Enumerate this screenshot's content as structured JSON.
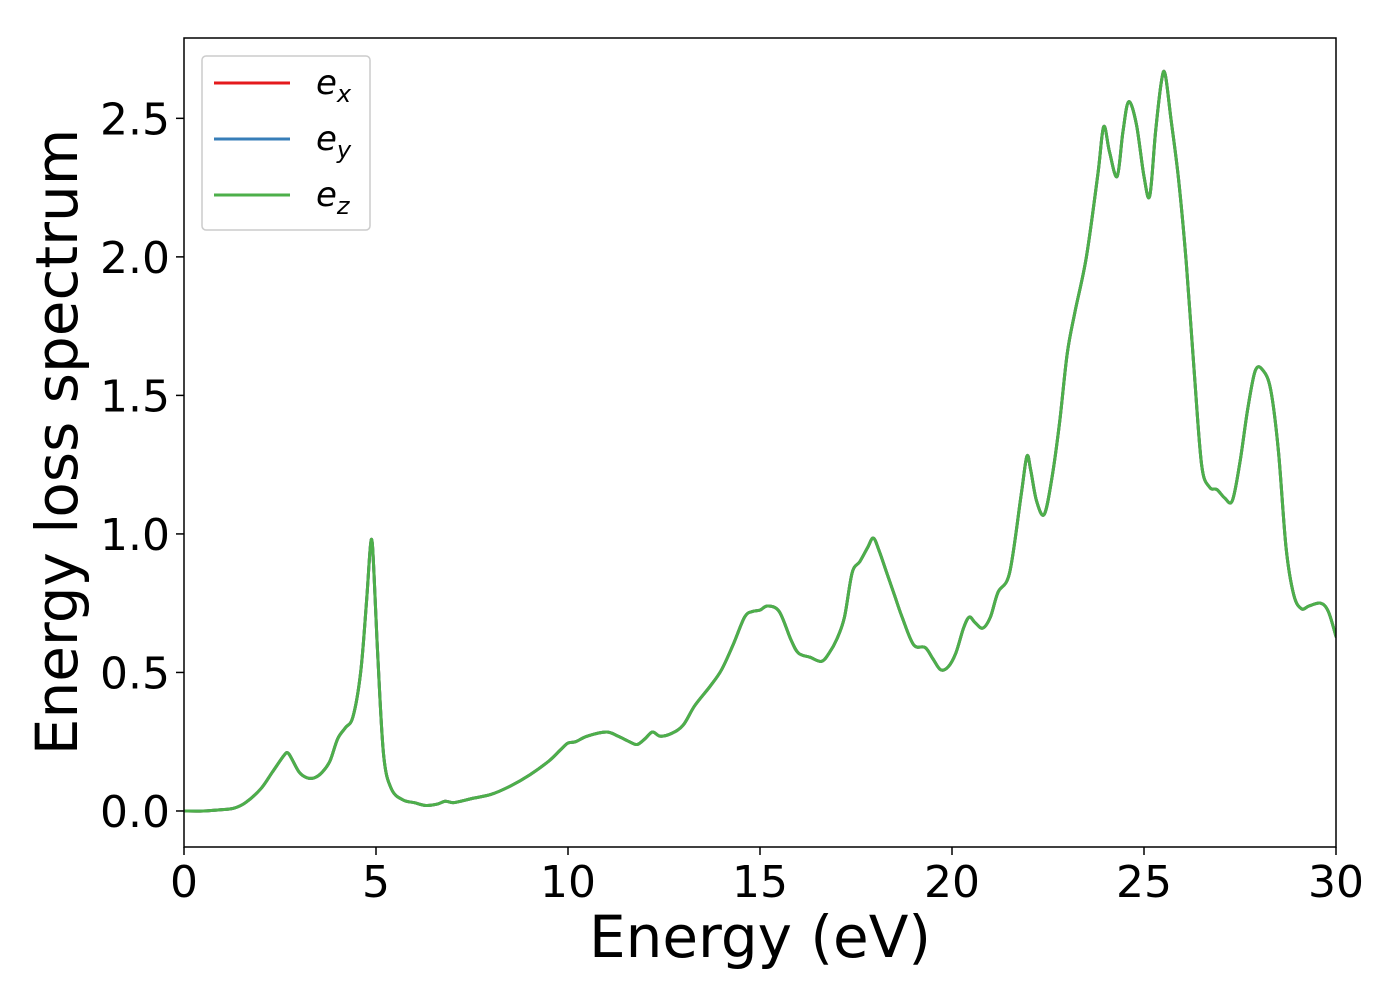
{
  "chart_data": {
    "type": "line",
    "xlabel": "Energy (eV)",
    "ylabel": "Energy loss spectrum",
    "xlim": [
      0,
      30
    ],
    "ylim": [
      -0.13,
      2.79
    ],
    "xticks": [
      0,
      5,
      10,
      15,
      20,
      25,
      30
    ],
    "xtick_labels": [
      "0",
      "5",
      "10",
      "15",
      "20",
      "25",
      "30"
    ],
    "yticks": [
      0.0,
      0.5,
      1.0,
      1.5,
      2.0,
      2.5
    ],
    "ytick_labels": [
      "0.0",
      "0.5",
      "1.0",
      "1.5",
      "2.0",
      "2.5"
    ],
    "grid": false,
    "legend_position": "top-left",
    "series": [
      {
        "name": "e",
        "subscript": "x",
        "color": "#e41a1c"
      },
      {
        "name": "e",
        "subscript": "y",
        "color": "#377eb8"
      },
      {
        "name": "e",
        "subscript": "z",
        "color": "#4daf4a"
      }
    ],
    "shared_values": {
      "x": [
        0,
        0.5,
        1.0,
        1.3,
        1.6,
        2.0,
        2.3,
        2.6,
        2.7,
        2.8,
        3.0,
        3.2,
        3.4,
        3.6,
        3.8,
        4.0,
        4.2,
        4.4,
        4.6,
        4.75,
        4.85,
        4.9,
        4.95,
        5.05,
        5.2,
        5.4,
        5.7,
        6.0,
        6.3,
        6.6,
        6.8,
        7.0,
        7.2,
        7.5,
        8.0,
        8.5,
        9.0,
        9.5,
        9.8,
        10.0,
        10.2,
        10.5,
        11.0,
        11.3,
        11.6,
        11.8,
        12.0,
        12.2,
        12.4,
        12.7,
        13.0,
        13.3,
        13.7,
        14.0,
        14.3,
        14.6,
        14.8,
        15.0,
        15.2,
        15.5,
        15.8,
        16.0,
        16.3,
        16.6,
        16.8,
        17.0,
        17.2,
        17.4,
        17.6,
        17.8,
        17.95,
        18.1,
        18.3,
        18.5,
        18.7,
        19.0,
        19.3,
        19.5,
        19.7,
        19.9,
        20.1,
        20.3,
        20.45,
        20.6,
        20.8,
        21.0,
        21.2,
        21.5,
        21.8,
        21.95,
        22.05,
        22.2,
        22.4,
        22.6,
        22.8,
        23.0,
        23.2,
        23.5,
        23.8,
        23.95,
        24.1,
        24.3,
        24.45,
        24.6,
        24.8,
        25.0,
        25.15,
        25.3,
        25.45,
        25.55,
        25.7,
        25.9,
        26.1,
        26.3,
        26.5,
        26.7,
        26.9,
        27.1,
        27.3,
        27.5,
        27.7,
        27.9,
        28.1,
        28.3,
        28.5,
        28.7,
        28.9,
        29.1,
        29.3,
        29.6,
        29.8,
        30.0
      ],
      "y": [
        0.0,
        0.0,
        0.005,
        0.01,
        0.03,
        0.08,
        0.14,
        0.2,
        0.21,
        0.19,
        0.14,
        0.12,
        0.12,
        0.14,
        0.18,
        0.26,
        0.3,
        0.34,
        0.5,
        0.75,
        0.95,
        0.97,
        0.85,
        0.55,
        0.2,
        0.08,
        0.04,
        0.03,
        0.02,
        0.025,
        0.035,
        0.03,
        0.035,
        0.045,
        0.06,
        0.09,
        0.13,
        0.18,
        0.22,
        0.245,
        0.25,
        0.27,
        0.285,
        0.27,
        0.25,
        0.24,
        0.26,
        0.285,
        0.27,
        0.28,
        0.31,
        0.38,
        0.45,
        0.51,
        0.6,
        0.7,
        0.72,
        0.725,
        0.74,
        0.72,
        0.62,
        0.57,
        0.555,
        0.54,
        0.57,
        0.62,
        0.7,
        0.86,
        0.9,
        0.95,
        0.985,
        0.94,
        0.86,
        0.78,
        0.7,
        0.6,
        0.59,
        0.55,
        0.51,
        0.52,
        0.57,
        0.66,
        0.7,
        0.68,
        0.66,
        0.7,
        0.79,
        0.86,
        1.14,
        1.28,
        1.23,
        1.12,
        1.07,
        1.2,
        1.4,
        1.65,
        1.8,
        2.0,
        2.3,
        2.47,
        2.38,
        2.29,
        2.45,
        2.56,
        2.48,
        2.29,
        2.22,
        2.45,
        2.63,
        2.66,
        2.5,
        2.28,
        1.98,
        1.6,
        1.25,
        1.17,
        1.16,
        1.13,
        1.12,
        1.26,
        1.45,
        1.59,
        1.59,
        1.52,
        1.3,
        0.95,
        0.78,
        0.73,
        0.74,
        0.75,
        0.72,
        0.63
      ]
    },
    "legend_labels": [
      "e",
      "e",
      "e"
    ]
  }
}
